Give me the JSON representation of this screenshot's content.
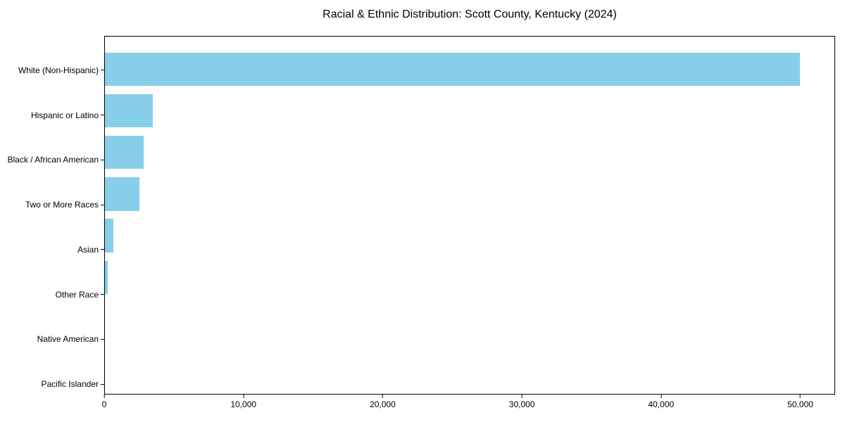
{
  "title": "Racial & Ethnic Distribution: Scott County, Kentucky (2024)",
  "chart_data": {
    "type": "bar",
    "orientation": "horizontal",
    "title": "Racial & Ethnic Distribution: Scott County, Kentucky (2024)",
    "categories": [
      "White (Non-Hispanic)",
      "Hispanic or Latino",
      "Black / African American",
      "Two or More Races",
      "Asian",
      "Other Race",
      "Native American",
      "Pacific Islander"
    ],
    "values": [
      50000,
      3450,
      2810,
      2460,
      620,
      210,
      0,
      0
    ],
    "xlabel": "",
    "ylabel": "",
    "xlim": [
      0,
      52500
    ],
    "x_ticks": [
      {
        "value": 0,
        "label": "0"
      },
      {
        "value": 10000,
        "label": "10,000"
      },
      {
        "value": 20000,
        "label": "20,000"
      },
      {
        "value": 30000,
        "label": "30,000"
      },
      {
        "value": 40000,
        "label": "40,000"
      },
      {
        "value": 50000,
        "label": "50,000"
      }
    ],
    "bar_color": "#87CEEB",
    "frame_color": "#000000",
    "grid": false,
    "legend": false
  }
}
